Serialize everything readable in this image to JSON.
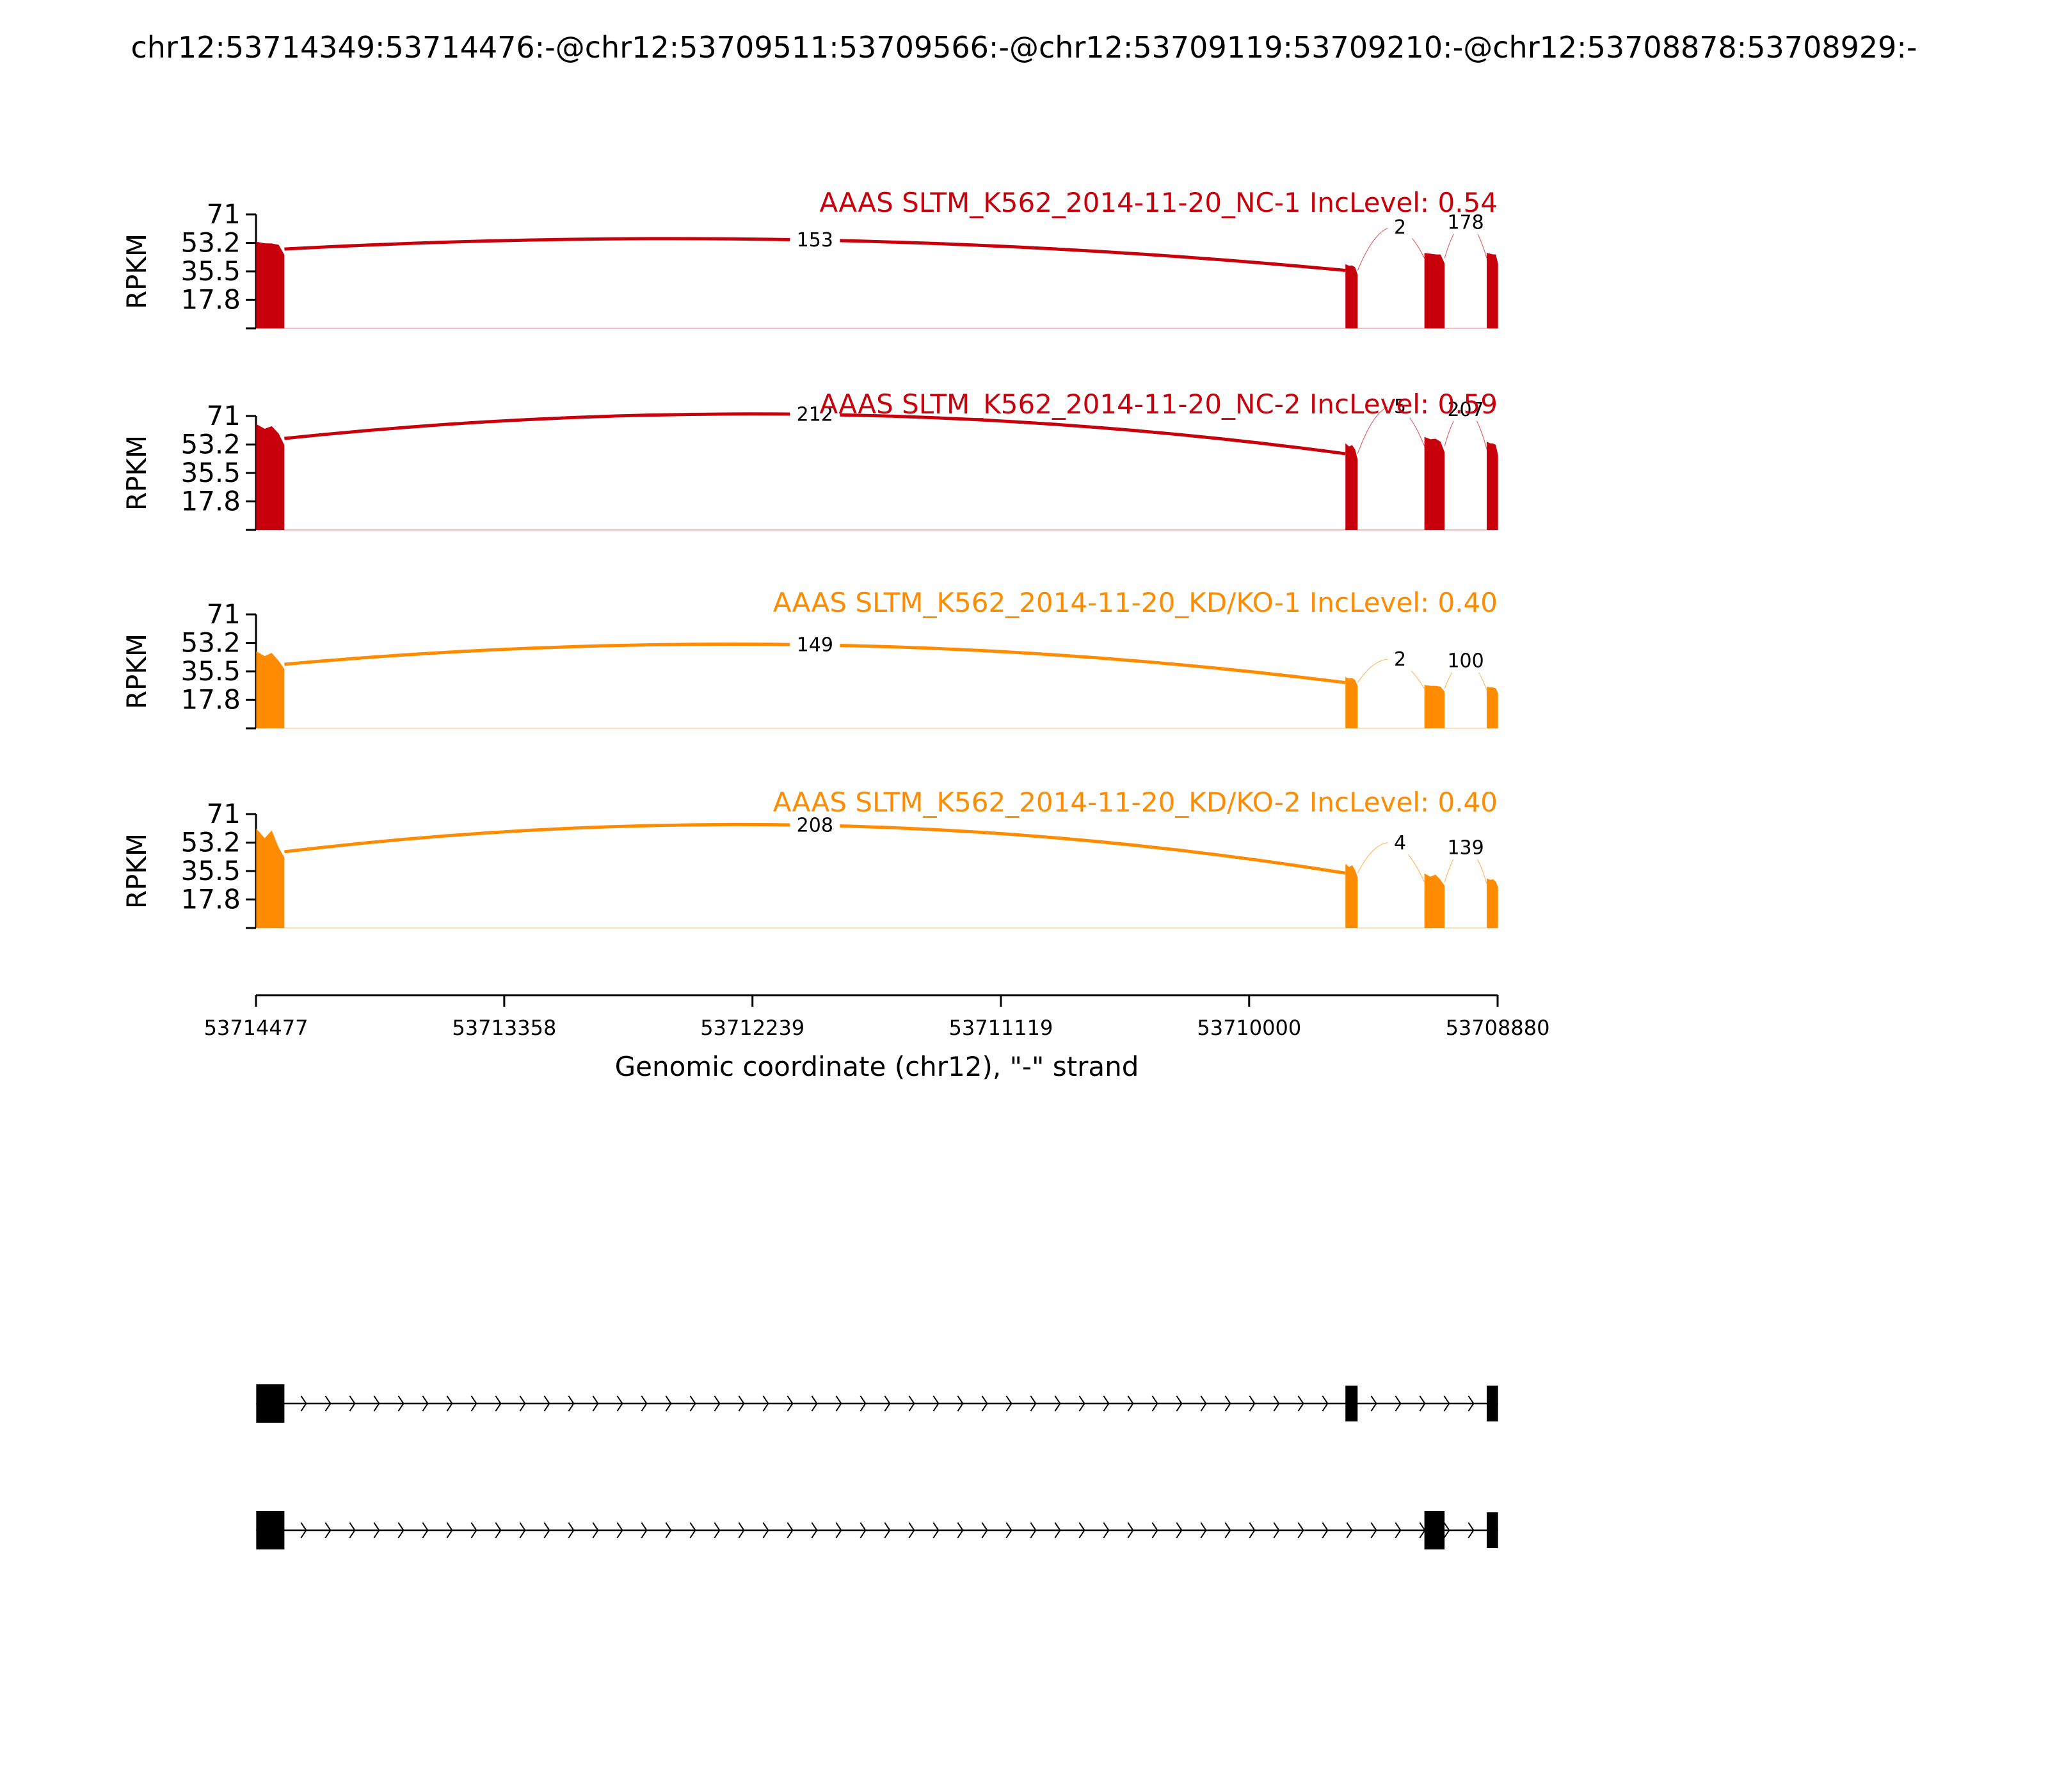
{
  "figure_title": "chr12:53714349:53714476:-@chr12:53709511:53709566:-@chr12:53709119:53709210:-@chr12:53708878:53708929:-",
  "chart_data": {
    "type": "area",
    "title": "chr12:53714349:53714476:-@chr12:53709511:53709566:-@chr12:53709119:53709210:-@chr12:53708878:53708929:-",
    "ylabel": "RPKM",
    "xlabel": "Genomic coordinate (chr12), \"-\" strand",
    "ylim": [
      0,
      71
    ],
    "yticks": [
      "71",
      "53.2",
      "35.5",
      "17.8"
    ],
    "xlim": [
      53714477,
      53708880
    ],
    "xticks": [
      "53714477",
      "53713358",
      "53712239",
      "53711119",
      "53710000",
      "53708880"
    ],
    "exons": [
      {
        "start": 53714476,
        "end": 53714349
      },
      {
        "start": 53709566,
        "end": 53709511
      },
      {
        "start": 53709210,
        "end": 53709119
      },
      {
        "start": 53708929,
        "end": 53708878
      }
    ],
    "tracks": [
      {
        "label": "AAAS SLTM_K562_2014-11-20_NC-1 IncLevel: 0.54",
        "color": "#c8000c",
        "exon_peaks": [
          54,
          40,
          47,
          47
        ],
        "exon_levels": [
          52,
          38,
          46,
          46
        ],
        "junctions": [
          {
            "from": 53714349,
            "to": 53709566,
            "count": "153",
            "peak": 55
          },
          {
            "from": 53709511,
            "to": 53709210,
            "count": "2",
            "peak": 63
          },
          {
            "from": 53709119,
            "to": 53708929,
            "count": "178",
            "peak": 66
          }
        ]
      },
      {
        "label": "AAAS SLTM_K562_2014-11-20_NC-2 IncLevel: 0.59",
        "color": "#c8000c",
        "exon_peaks": [
          66,
          54,
          58,
          55
        ],
        "exon_levels": [
          60,
          50,
          55,
          53
        ],
        "junctions": [
          {
            "from": 53714349,
            "to": 53709566,
            "count": "212",
            "peak": 72
          },
          {
            "from": 53709511,
            "to": 53709210,
            "count": "5",
            "peak": 77
          },
          {
            "from": 53709119,
            "to": 53708929,
            "count": "207",
            "peak": 75
          }
        ]
      },
      {
        "label": "AAAS SLTM_K562_2014-11-20_KD/KO-1 IncLevel: 0.40",
        "color": "#ff8c00",
        "exon_peaks": [
          48,
          32,
          27,
          26
        ],
        "exon_levels": [
          42,
          30,
          26,
          25
        ],
        "junctions": [
          {
            "from": 53714349,
            "to": 53709566,
            "count": "149",
            "peak": 52
          },
          {
            "from": 53709511,
            "to": 53709210,
            "count": "2",
            "peak": 43
          },
          {
            "from": 53709119,
            "to": 53708929,
            "count": "100",
            "peak": 42
          }
        ]
      },
      {
        "label": "AAAS SLTM_K562_2014-11-20_KD/KO-2 IncLevel: 0.40",
        "color": "#ff8c00",
        "exon_peaks": [
          62,
          40,
          34,
          31
        ],
        "exon_levels": [
          50,
          36,
          30,
          29
        ],
        "junctions": [
          {
            "from": 53714349,
            "to": 53709566,
            "count": "208",
            "peak": 64
          },
          {
            "from": 53709511,
            "to": 53709210,
            "count": "4",
            "peak": 53
          },
          {
            "from": 53709119,
            "to": 53708929,
            "count": "139",
            "peak": 50
          }
        ]
      }
    ],
    "isoforms": [
      {
        "exons": [
          [
            53714476,
            53714349
          ],
          [
            53709566,
            53709511
          ],
          [
            53708929,
            53708878
          ]
        ]
      },
      {
        "exons": [
          [
            53714476,
            53714349
          ],
          [
            53709210,
            53709119
          ],
          [
            53708929,
            53708878
          ]
        ]
      }
    ]
  }
}
